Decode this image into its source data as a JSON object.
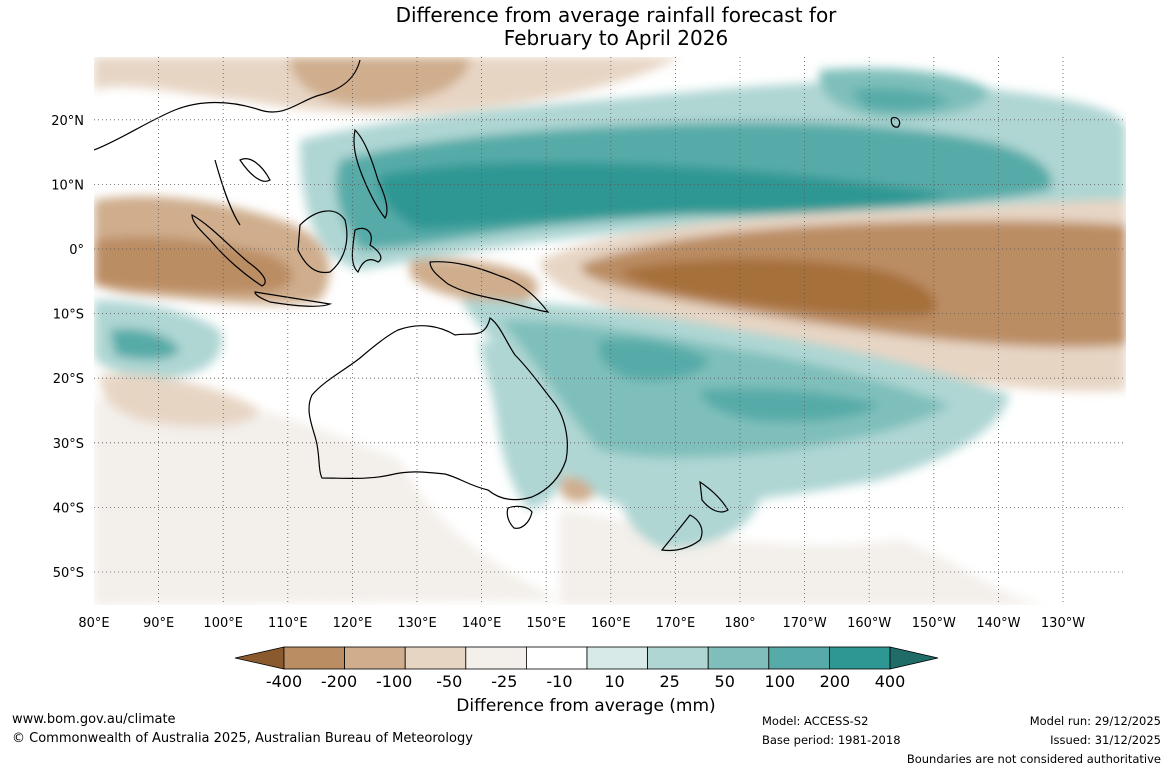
{
  "title": {
    "line1": "Difference from average rainfall forecast for",
    "line2": "February to April 2026"
  },
  "map": {
    "latitude_labels": [
      "20°N",
      "10°N",
      "0°",
      "10°S",
      "20°S",
      "30°S",
      "40°S",
      "50°S"
    ],
    "longitude_labels": [
      "80°E",
      "90°E",
      "100°E",
      "110°E",
      "120°E",
      "130°E",
      "140°E",
      "150°E",
      "160°E",
      "170°E",
      "180°",
      "170°W",
      "160°W",
      "150°W",
      "140°W",
      "130°W"
    ],
    "features": [
      "Wet band north of the equator from the Philippines across the central Pacific",
      "Dry band along and south of the equator from 150°E to the central Pacific",
      "Dry over western Maritime Continent and Indian Ocean near Sumatra",
      "Wet over eastern Australia, New Zealand and the southwest Pacific"
    ]
  },
  "legend": {
    "tick_labels": [
      "-400",
      "-200",
      "-100",
      "-50",
      "-25",
      "-10",
      "10",
      "25",
      "50",
      "100",
      "200",
      "400"
    ],
    "colors": [
      "#A66F3B",
      "#BB8D63",
      "#CFAD8D",
      "#E7D5C4",
      "#F3EFEA",
      "#FFFFFF",
      "#D7EAE8",
      "#AFD6D3",
      "#7FBFBB",
      "#56ABA8",
      "#2E9793",
      "#1F6C69"
    ],
    "title": "Difference from average (mm)"
  },
  "footer": {
    "website": "www.bom.gov.au/climate",
    "copyright": "© Commonwealth of Australia 2025, Australian Bureau of Meteorology",
    "model": "Model: ACCESS-S2",
    "base_period": "Base period: 1981-2018",
    "model_run": "Model run: 29/12/2025",
    "issued": "Issued: 31/12/2025",
    "disclaimer": "Boundaries are not considered authoritative"
  }
}
